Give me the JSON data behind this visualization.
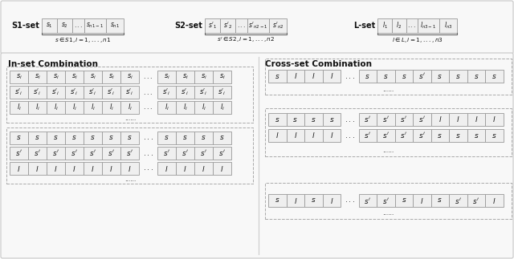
{
  "background_color": "#ffffff",
  "panel_bg": "#f8f8f8",
  "cell_bg": "#efefef",
  "cell_border": "#999999",
  "dashed_border": "#aaaaaa",
  "text_color": "#111111",
  "inset_title": "In-set Combination",
  "crossset_title": "Cross-set Combination"
}
